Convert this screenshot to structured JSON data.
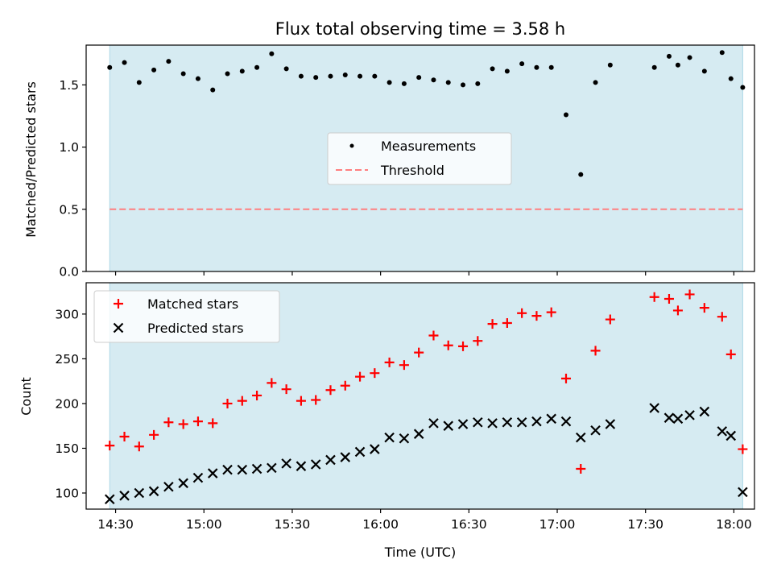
{
  "chart_data": [
    {
      "type": "scatter",
      "title": "Flux total observing time = 3.58 h",
      "xlabel": "",
      "ylabel": "Matched/Predicted stars",
      "xlim": [
        "14:20",
        "18:07"
      ],
      "ylim": [
        0,
        1.82
      ],
      "x_tick_labels": [
        "14:30",
        "15:00",
        "15:30",
        "16:00",
        "16:30",
        "17:00",
        "17:30",
        "18:00"
      ],
      "y_tick_labels": [
        "0.0",
        "0.5",
        "1.0",
        "1.5"
      ],
      "shaded_interval": [
        "14:28",
        "18:03"
      ],
      "shade_color": "#add8e6",
      "legend_position": "center",
      "series": [
        {
          "name": "Measurements",
          "marker": "dot",
          "color": "#000000",
          "x": [
            "14:28",
            "14:33",
            "14:38",
            "14:43",
            "14:48",
            "14:53",
            "14:58",
            "15:03",
            "15:08",
            "15:13",
            "15:18",
            "15:23",
            "15:28",
            "15:33",
            "15:38",
            "15:43",
            "15:48",
            "15:53",
            "15:58",
            "16:03",
            "16:08",
            "16:13",
            "16:18",
            "16:23",
            "16:28",
            "16:33",
            "16:38",
            "16:43",
            "16:48",
            "16:53",
            "16:58",
            "17:03",
            "17:08",
            "17:13",
            "17:18",
            "17:33",
            "17:38",
            "17:41",
            "17:45",
            "17:50",
            "17:56",
            "17:59",
            "18:03"
          ],
          "y": [
            1.64,
            1.68,
            1.52,
            1.62,
            1.69,
            1.59,
            1.55,
            1.46,
            1.59,
            1.61,
            1.64,
            1.75,
            1.63,
            1.57,
            1.56,
            1.57,
            1.58,
            1.57,
            1.57,
            1.52,
            1.51,
            1.56,
            1.54,
            1.52,
            1.5,
            1.51,
            1.63,
            1.61,
            1.67,
            1.64,
            1.64,
            1.26,
            0.78,
            1.52,
            1.66,
            1.64,
            1.73,
            1.66,
            1.72,
            1.61,
            1.76,
            1.55,
            1.48
          ]
        },
        {
          "name": "Threshold",
          "style": "dashed",
          "color": "#ff7f7f",
          "x": [
            "14:28",
            "18:03"
          ],
          "y": [
            0.5,
            0.5
          ]
        }
      ]
    },
    {
      "type": "scatter",
      "title": "",
      "xlabel": "Time (UTC)",
      "ylabel": "Count",
      "xlim": [
        "14:20",
        "18:07"
      ],
      "ylim": [
        82,
        335
      ],
      "x_tick_labels": [
        "14:30",
        "15:00",
        "15:30",
        "16:00",
        "16:30",
        "17:00",
        "17:30",
        "18:00"
      ],
      "y_tick_labels": [
        "100",
        "150",
        "200",
        "250",
        "300"
      ],
      "shaded_interval": [
        "14:28",
        "18:03"
      ],
      "shade_color": "#add8e6",
      "legend_position": "upper left",
      "series": [
        {
          "name": "Matched stars",
          "marker": "plus",
          "color": "#ff0000",
          "x": [
            "14:28",
            "14:33",
            "14:38",
            "14:43",
            "14:48",
            "14:53",
            "14:58",
            "15:03",
            "15:08",
            "15:13",
            "15:18",
            "15:23",
            "15:28",
            "15:33",
            "15:38",
            "15:43",
            "15:48",
            "15:53",
            "15:58",
            "16:03",
            "16:08",
            "16:13",
            "16:18",
            "16:23",
            "16:28",
            "16:33",
            "16:38",
            "16:43",
            "16:48",
            "16:53",
            "16:58",
            "17:03",
            "17:08",
            "17:13",
            "17:18",
            "17:33",
            "17:38",
            "17:41",
            "17:45",
            "17:50",
            "17:56",
            "17:59",
            "18:03"
          ],
          "y": [
            153,
            163,
            152,
            165,
            179,
            177,
            180,
            178,
            200,
            203,
            209,
            223,
            216,
            203,
            204,
            215,
            220,
            230,
            234,
            246,
            243,
            257,
            276,
            265,
            264,
            270,
            289,
            290,
            301,
            298,
            302,
            228,
            127,
            259,
            294,
            319,
            317,
            304,
            322,
            307,
            297,
            255,
            149
          ]
        },
        {
          "name": "Predicted stars",
          "marker": "x",
          "color": "#000000",
          "x": [
            "14:28",
            "14:33",
            "14:38",
            "14:43",
            "14:48",
            "14:53",
            "14:58",
            "15:03",
            "15:08",
            "15:13",
            "15:18",
            "15:23",
            "15:28",
            "15:33",
            "15:38",
            "15:43",
            "15:48",
            "15:53",
            "15:58",
            "16:03",
            "16:08",
            "16:13",
            "16:18",
            "16:23",
            "16:28",
            "16:33",
            "16:38",
            "16:43",
            "16:48",
            "16:53",
            "16:58",
            "17:03",
            "17:08",
            "17:13",
            "17:18",
            "17:33",
            "17:38",
            "17:41",
            "17:45",
            "17:50",
            "17:56",
            "17:59",
            "18:03"
          ],
          "y": [
            93,
            97,
            100,
            102,
            107,
            111,
            117,
            122,
            126,
            126,
            127,
            128,
            133,
            130,
            132,
            137,
            140,
            146,
            149,
            162,
            161,
            166,
            178,
            175,
            177,
            179,
            178,
            179,
            179,
            180,
            183,
            180,
            162,
            170,
            177,
            195,
            184,
            183,
            187,
            191,
            169,
            164,
            101
          ]
        }
      ]
    }
  ]
}
